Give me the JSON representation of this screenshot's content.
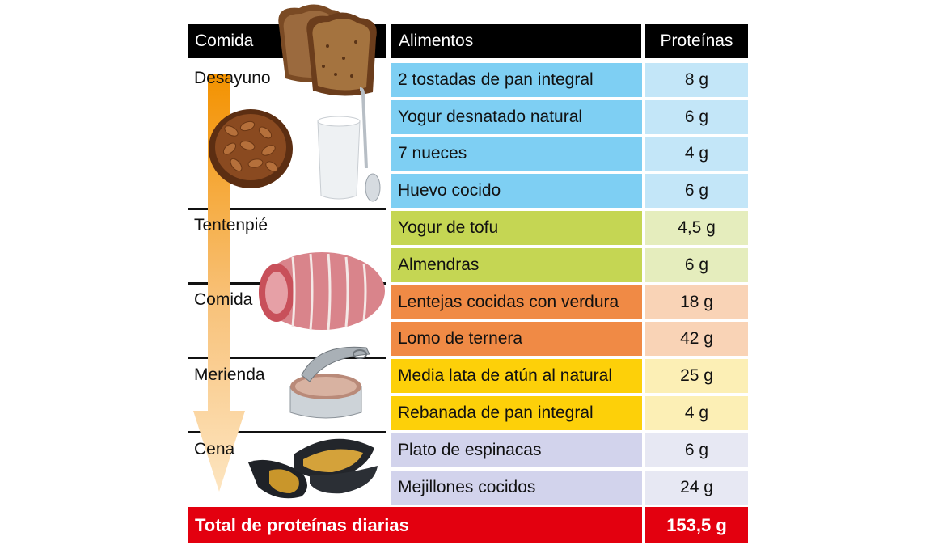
{
  "headers": {
    "meal": "Comida",
    "foods": "Alimentos",
    "protein": "Proteínas"
  },
  "meals": [
    {
      "label": "Desayuno"
    },
    {
      "label": "Tentenpié"
    },
    {
      "label": "Comida"
    },
    {
      "label": "Merienda"
    },
    {
      "label": "Cena"
    }
  ],
  "rows": [
    {
      "food": "2 tostadas de pan integral",
      "protein": "8 g",
      "food_color": "#7ecff3",
      "protein_color": "#c3e6f8"
    },
    {
      "food": "Yogur desnatado natural",
      "protein": "6 g",
      "food_color": "#7ecff3",
      "protein_color": "#c3e6f8"
    },
    {
      "food": "7 nueces",
      "protein": "4 g",
      "food_color": "#7ecff3",
      "protein_color": "#c3e6f8"
    },
    {
      "food": "Huevo cocido",
      "protein": "6 g",
      "food_color": "#7ecff3",
      "protein_color": "#c3e6f8"
    },
    {
      "food": "Yogur de tofu",
      "protein": "4,5 g",
      "food_color": "#c5d653",
      "protein_color": "#e5edbd"
    },
    {
      "food": "Almendras",
      "protein": "6 g",
      "food_color": "#c5d653",
      "protein_color": "#e5edbd"
    },
    {
      "food": "Lentejas cocidas con verdura",
      "protein": "18 g",
      "food_color": "#f08a45",
      "protein_color": "#f9d3b6"
    },
    {
      "food": "Lomo de ternera",
      "protein": "42 g",
      "food_color": "#f08a45",
      "protein_color": "#f9d3b6"
    },
    {
      "food": "Media lata de atún al natural",
      "protein": "25 g",
      "food_color": "#fdd009",
      "protein_color": "#fcefb5"
    },
    {
      "food": "Rebanada de pan integral",
      "protein": "4 g",
      "food_color": "#fdd009",
      "protein_color": "#fcefb5"
    },
    {
      "food": "Plato de espinacas",
      "protein": "6 g",
      "food_color": "#d2d3ec",
      "protein_color": "#e7e8f3"
    },
    {
      "food": "Mejillones cocidos",
      "protein": "24 g",
      "food_color": "#d2d3ec",
      "protein_color": "#e7e8f3"
    }
  ],
  "total": {
    "label": "Total de proteínas diarias",
    "value": "153,5 g",
    "color": "#e3000f"
  },
  "icons": [
    "bread-illustration",
    "almonds-bowl-illustration",
    "yogurt-illustration",
    "beef-roast-illustration",
    "tuna-can-illustration",
    "mussels-illustration",
    "timeline-arrow"
  ]
}
